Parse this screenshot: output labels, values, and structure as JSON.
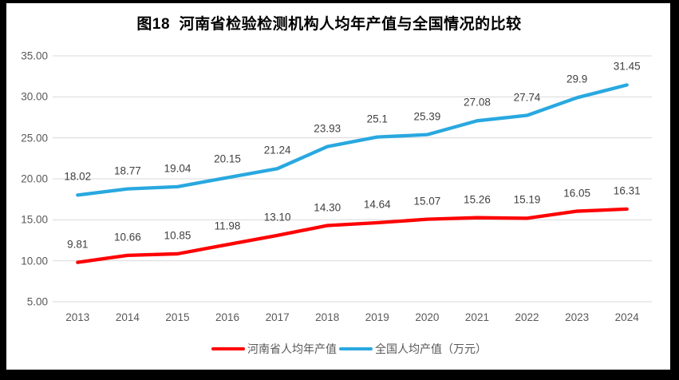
{
  "title": "图18  河南省检验检测机构人均年产值与全国情况的比较",
  "chart_data": {
    "type": "line",
    "title": "图18  河南省检验检测机构人均年产值与全国情况的比较",
    "categories": [
      "2013",
      "2014",
      "2015",
      "2016",
      "2017",
      "2018",
      "2019",
      "2020",
      "2021",
      "2022",
      "2023",
      "2024"
    ],
    "series": [
      {
        "name": "河南省人均年产值",
        "color": "#FE0000",
        "values": [
          9.81,
          10.66,
          10.85,
          11.98,
          13.1,
          14.3,
          14.64,
          15.07,
          15.26,
          15.19,
          16.05,
          16.31
        ],
        "labels": [
          "9.81",
          "10.66",
          "10.85",
          "11.98",
          "13.10",
          "14.30",
          "14.64",
          "15.07",
          "15.26",
          "15.19",
          "16.05",
          "16.31"
        ]
      },
      {
        "name": "全国人均产值（万元）",
        "color": "#29A8E0",
        "values": [
          18.02,
          18.77,
          19.04,
          20.15,
          21.24,
          23.93,
          25.1,
          25.39,
          27.08,
          27.74,
          29.9,
          31.45
        ],
        "labels": [
          "18.02",
          "18.77",
          "19.04",
          "20.15",
          "21.24",
          "23.93",
          "25.1",
          "25.39",
          "27.08",
          "27.74",
          "29.9",
          "31.45"
        ]
      }
    ],
    "y_axis": {
      "min": 5,
      "max": 35,
      "step": 5,
      "ticks": [
        "35.00",
        "30.00",
        "25.00",
        "20.00",
        "15.00",
        "10.00",
        "5.00"
      ]
    },
    "xlabel": "",
    "ylabel": "",
    "grid": true,
    "gridline_color": "#D9D9D9",
    "legend_position": "bottom"
  }
}
